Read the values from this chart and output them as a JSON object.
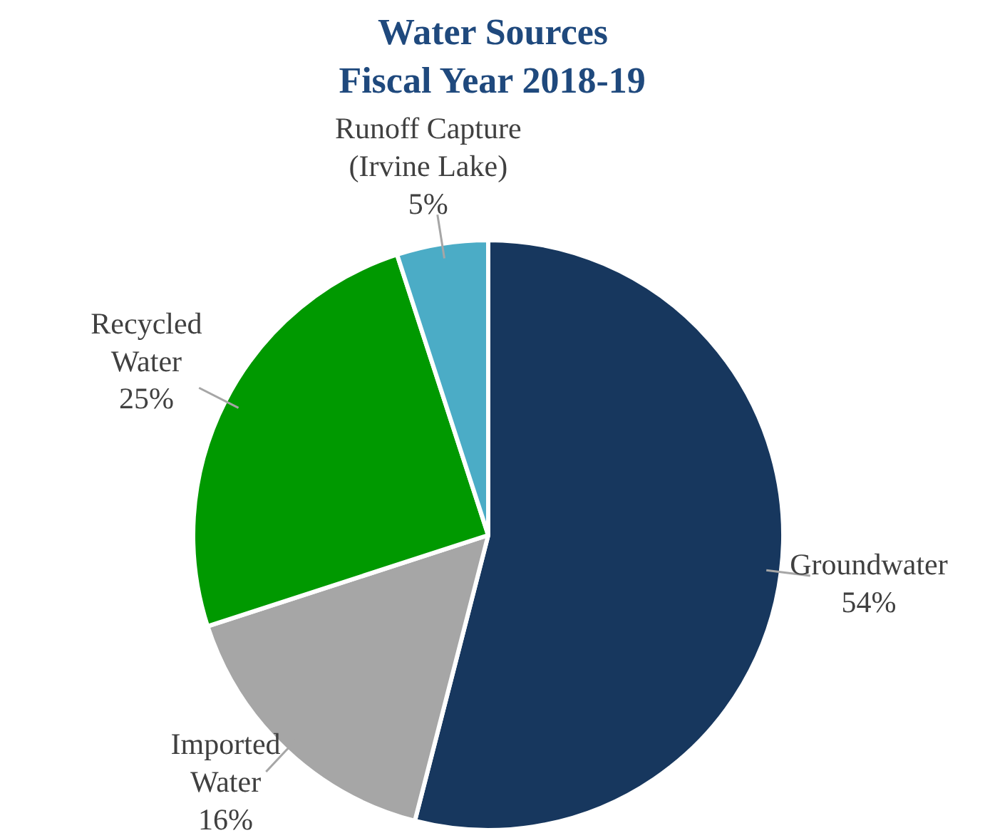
{
  "chart_data": {
    "type": "pie",
    "title": "Water Sources",
    "subtitle": "Fiscal Year 2018-19",
    "categories": [
      "Groundwater",
      "Imported\nWater",
      "Recycled\nWater",
      "Runoff Capture\n(Irvine Lake)"
    ],
    "values": [
      54,
      16,
      25,
      5
    ],
    "colors": [
      "#17375e",
      "#a6a6a6",
      "#009900",
      "#4bacc6"
    ],
    "value_labels": [
      "54%",
      "16%",
      "25%",
      "5%"
    ]
  }
}
